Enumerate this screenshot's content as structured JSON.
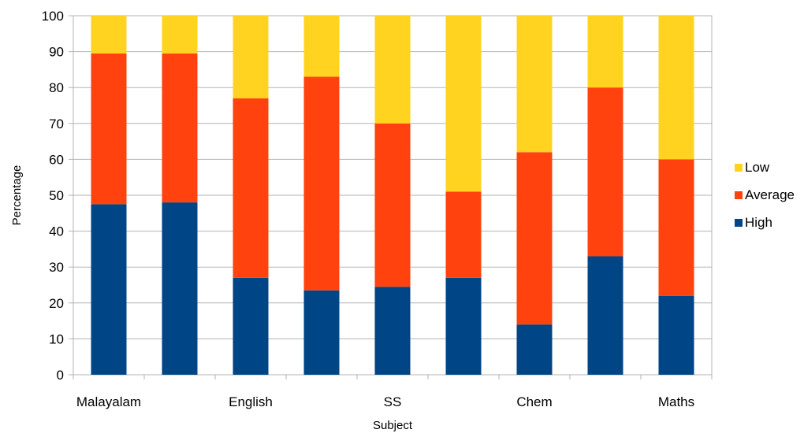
{
  "chart_data": {
    "type": "bar",
    "stacked": true,
    "categories": [
      "Malayalam",
      "",
      "English",
      "",
      "SS",
      "",
      "Chem",
      "",
      "Maths"
    ],
    "xlabel": "Subject",
    "ylabel": "Percentage",
    "ylim": [
      0,
      100
    ],
    "yticks": [
      0,
      10,
      20,
      30,
      40,
      50,
      60,
      70,
      80,
      90,
      100
    ],
    "grid": true,
    "legend_position": "right",
    "series": [
      {
        "name": "High",
        "color": "#004586",
        "values": [
          47.5,
          48,
          27,
          23.5,
          24.5,
          27,
          14,
          33,
          22
        ]
      },
      {
        "name": "Average",
        "color": "#ff420e",
        "values": [
          42,
          41.5,
          50,
          59.5,
          45.5,
          24,
          48,
          47,
          38
        ]
      },
      {
        "name": "Low",
        "color": "#ffd320",
        "values": [
          10.5,
          10.5,
          23,
          17,
          30,
          49,
          38,
          20,
          40
        ]
      }
    ]
  }
}
